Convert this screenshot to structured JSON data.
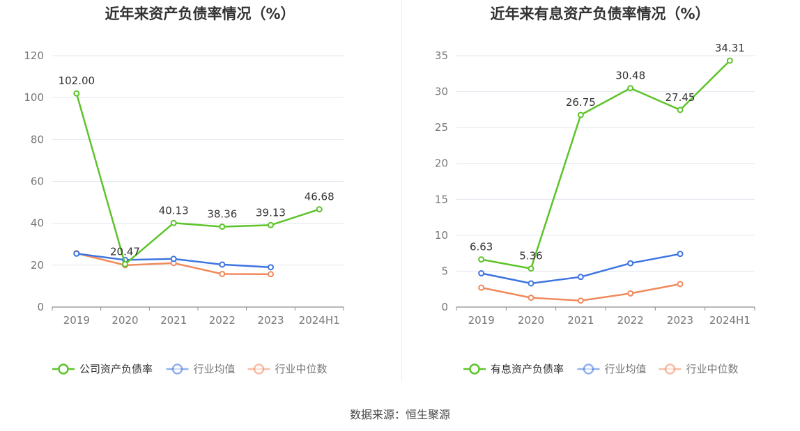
{
  "chart_data": [
    {
      "type": "line",
      "title": "近年来资产负债率情况（%）",
      "categories": [
        "2019",
        "2020",
        "2021",
        "2022",
        "2023",
        "2024H1"
      ],
      "ylim": [
        0,
        120
      ],
      "yticks": [
        "0",
        "20",
        "40",
        "60",
        "80",
        "100",
        "120"
      ],
      "grid": true,
      "legend_position": "bottom-center",
      "series": [
        {
          "name": "公司资产负债率",
          "color": "#5cc42a",
          "values": [
            102.0,
            20.47,
            40.13,
            38.36,
            39.13,
            46.68
          ],
          "labels": [
            "102.00",
            "20.47",
            "40.13",
            "38.36",
            "39.13",
            "46.68"
          ]
        },
        {
          "name": "行业均值",
          "color": "#3d74e0",
          "values": [
            25.5,
            22.5,
            23.0,
            20.3,
            19.0,
            null
          ]
        },
        {
          "name": "行业中位数",
          "color": "#f08a5d",
          "values": [
            25.7,
            20.0,
            21.0,
            15.8,
            15.7,
            null
          ]
        }
      ]
    },
    {
      "type": "line",
      "title": "近年来有息资产负债率情况（%）",
      "categories": [
        "2019",
        "2020",
        "2021",
        "2022",
        "2023",
        "2024H1"
      ],
      "ylim": [
        0,
        35
      ],
      "yticks": [
        "0",
        "5",
        "10",
        "15",
        "20",
        "25",
        "30",
        "35"
      ],
      "grid": true,
      "legend_position": "bottom-center",
      "series": [
        {
          "name": "有息资产负债率",
          "color": "#5cc42a",
          "values": [
            6.63,
            5.36,
            26.75,
            30.48,
            27.45,
            34.31
          ],
          "labels": [
            "6.63",
            "5.36",
            "26.75",
            "30.48",
            "27.45",
            "34.31"
          ]
        },
        {
          "name": "行业均值",
          "color": "#3d74e0",
          "values": [
            4.7,
            3.3,
            4.2,
            6.1,
            7.4,
            null
          ]
        },
        {
          "name": "行业中位数",
          "color": "#f08a5d",
          "values": [
            2.7,
            1.3,
            0.9,
            1.9,
            3.2,
            null
          ]
        }
      ]
    }
  ],
  "source": "数据来源：恒生聚源"
}
